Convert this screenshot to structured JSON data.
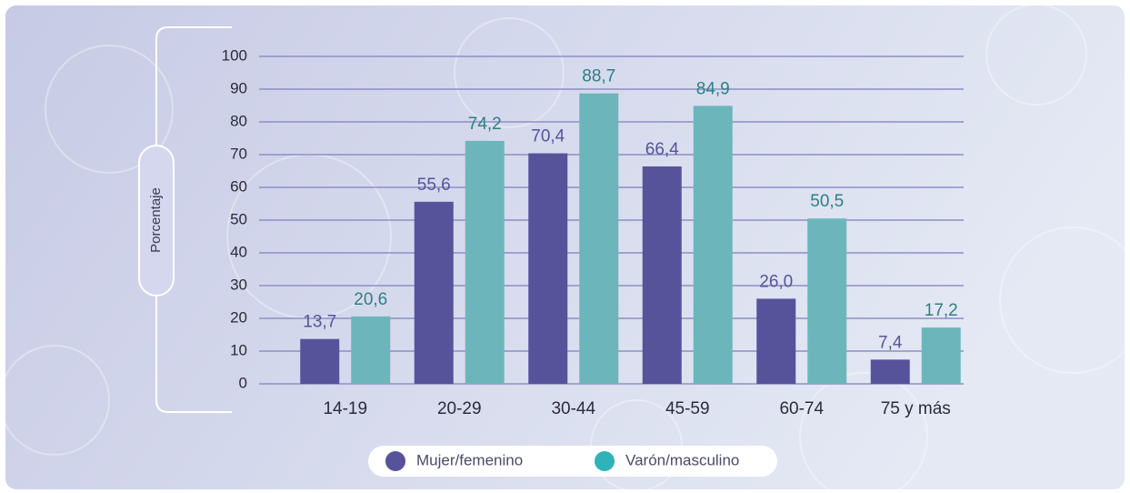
{
  "chart_data": {
    "type": "bar",
    "y_label": "Porcentaje",
    "categories": [
      "14-19",
      "20-29",
      "30-44",
      "45-59",
      "60-74",
      "75 y más"
    ],
    "series": [
      {
        "name": "Mujer/femenino",
        "color": "#56539b",
        "label_color": "#56539b",
        "values": [
          13.7,
          55.6,
          70.4,
          66.4,
          26.0,
          7.4
        ],
        "value_labels": [
          "13,7",
          "55,6",
          "70,4",
          "66,4",
          "26,0",
          "7,4"
        ]
      },
      {
        "name": "Varón/masculino",
        "color": "#6cb6bb",
        "label_color": "#2e7f83",
        "values": [
          20.6,
          74.2,
          88.7,
          84.9,
          50.5,
          17.2
        ],
        "value_labels": [
          "20,6",
          "74,2",
          "88,7",
          "84,9",
          "50,5",
          "17,2"
        ]
      }
    ],
    "ylim": [
      0,
      100
    ],
    "yticks": [
      0,
      10,
      20,
      30,
      40,
      50,
      60,
      70,
      80,
      90,
      100
    ],
    "grid": true
  }
}
